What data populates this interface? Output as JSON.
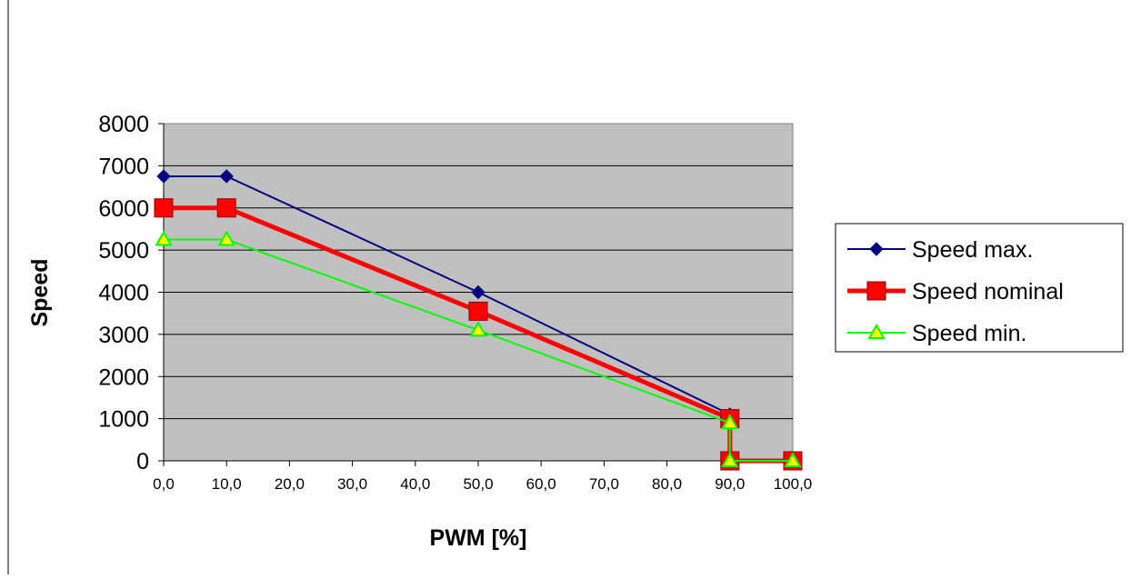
{
  "chart_data": {
    "type": "line",
    "title": "",
    "xlabel": "PWM [%]",
    "ylabel": "Speed",
    "xlim": [
      0,
      100
    ],
    "ylim": [
      0,
      8000
    ],
    "x_ticks": [
      "0,0",
      "10,0",
      "20,0",
      "30,0",
      "40,0",
      "50,0",
      "60,0",
      "70,0",
      "80,0",
      "90,0",
      "100,0"
    ],
    "y_ticks": [
      "0",
      "1000",
      "2000",
      "3000",
      "4000",
      "5000",
      "6000",
      "7000",
      "8000"
    ],
    "grid": "horizontal",
    "legend_position": "right",
    "series": [
      {
        "name": "Speed max.",
        "color": "#000080",
        "marker": "diamond",
        "points": [
          [
            0,
            6750
          ],
          [
            10,
            6750
          ],
          [
            50,
            4000
          ],
          [
            90,
            1100
          ],
          [
            90,
            0
          ],
          [
            100,
            0
          ]
        ]
      },
      {
        "name": "Speed nominal",
        "color": "#ff0000",
        "marker": "square",
        "points": [
          [
            0,
            6000
          ],
          [
            10,
            6000
          ],
          [
            50,
            3550
          ],
          [
            90,
            1000
          ],
          [
            90,
            0
          ],
          [
            100,
            0
          ]
        ]
      },
      {
        "name": "Speed min.",
        "color": "#00ff00",
        "marker": "triangle",
        "points": [
          [
            0,
            5250
          ],
          [
            10,
            5250
          ],
          [
            50,
            3100
          ],
          [
            90,
            900
          ],
          [
            90,
            0
          ],
          [
            100,
            0
          ]
        ]
      }
    ]
  }
}
